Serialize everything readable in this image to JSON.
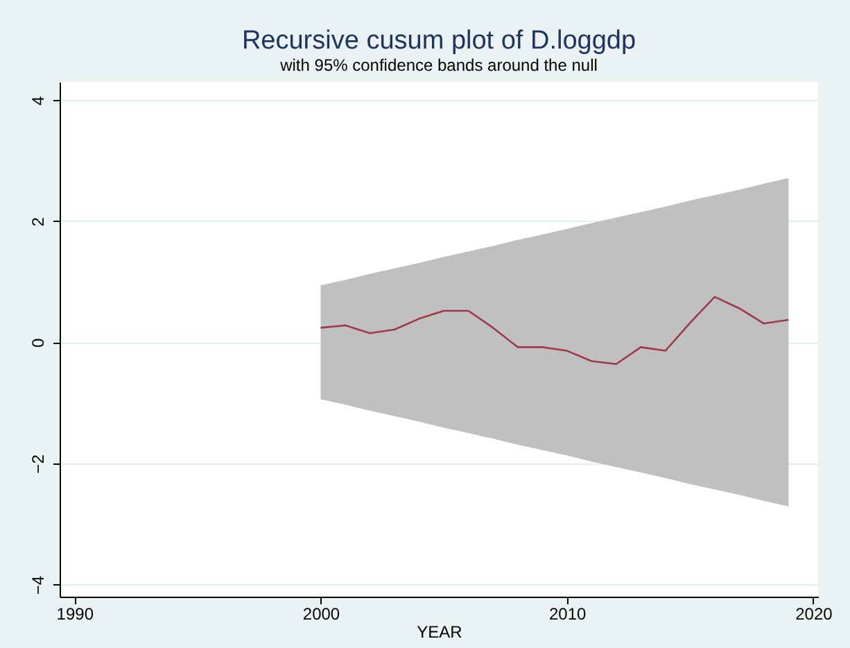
{
  "chart_data": {
    "type": "line",
    "title": "Recursive cusum plot of D.loggdp",
    "subtitle": "with 95% confidence bands around the null",
    "xlabel": "YEAR",
    "x": [
      2000,
      2001,
      2002,
      2003,
      2004,
      2005,
      2006,
      2007,
      2008,
      2009,
      2010,
      2011,
      2012,
      2013,
      2014,
      2015,
      2016,
      2017,
      2018,
      2019
    ],
    "series": [
      {
        "color": "#a03a48",
        "values": [
          0.24,
          0.28,
          0.15,
          0.21,
          0.39,
          0.52,
          0.52,
          0.24,
          -0.08,
          -0.08,
          -0.14,
          -0.31,
          -0.36,
          -0.08,
          -0.14,
          0.32,
          0.75,
          0.56,
          0.31,
          0.37
        ],
        "lower": [
          -0.94,
          -1.03,
          -1.13,
          -1.22,
          -1.31,
          -1.41,
          -1.5,
          -1.59,
          -1.69,
          -1.78,
          -1.87,
          -1.97,
          -2.06,
          -2.15,
          -2.24,
          -2.34,
          -2.43,
          -2.52,
          -2.62,
          -2.71
        ],
        "upper": [
          0.94,
          1.03,
          1.13,
          1.22,
          1.31,
          1.41,
          1.5,
          1.59,
          1.69,
          1.78,
          1.87,
          1.97,
          2.06,
          2.15,
          2.24,
          2.34,
          2.43,
          2.52,
          2.62,
          2.71
        ]
      }
    ],
    "xlim": [
      1989.4,
      2020.2
    ],
    "xticks": [
      1990,
      2000,
      2010,
      2020
    ],
    "ylim": [
      -4.2,
      4.3
    ],
    "yticks": [
      -4,
      -2,
      0,
      2,
      4
    ],
    "grid": "y"
  }
}
